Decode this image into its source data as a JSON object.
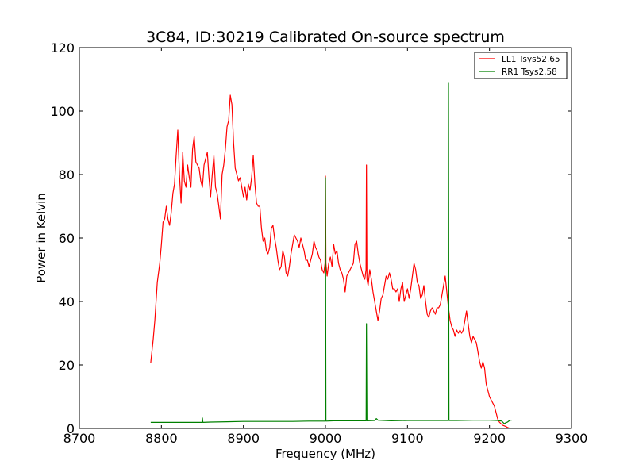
{
  "chart_data": {
    "type": "line",
    "title": "3C84, ID:30219 Calibrated On-source spectrum",
    "xlabel": "Frequency (MHz)",
    "ylabel": "Power in Kelvin",
    "xlim": [
      8700,
      9300
    ],
    "ylim": [
      0,
      120
    ],
    "xticks": [
      8700,
      8800,
      8900,
      9000,
      9100,
      9200,
      9300
    ],
    "yticks": [
      0,
      20,
      40,
      60,
      80,
      100,
      120
    ],
    "grid": false,
    "legend_position": "top-right",
    "series": [
      {
        "name": "LL1 Tsys52.65",
        "color": "#ff0000",
        "points": [
          [
            8787,
            20.7
          ],
          [
            8790,
            28
          ],
          [
            8792,
            34
          ],
          [
            8795,
            46
          ],
          [
            8798,
            52
          ],
          [
            8800,
            58
          ],
          [
            8802,
            65
          ],
          [
            8804,
            66
          ],
          [
            8806,
            70
          ],
          [
            8808,
            66
          ],
          [
            8810,
            64
          ],
          [
            8812,
            68
          ],
          [
            8814,
            74
          ],
          [
            8816,
            77
          ],
          [
            8818,
            86
          ],
          [
            8820,
            94
          ],
          [
            8822,
            80
          ],
          [
            8824,
            71
          ],
          [
            8826,
            87
          ],
          [
            8828,
            78
          ],
          [
            8830,
            76
          ],
          [
            8832,
            83
          ],
          [
            8834,
            79
          ],
          [
            8836,
            76
          ],
          [
            8838,
            88
          ],
          [
            8840,
            92
          ],
          [
            8842,
            84
          ],
          [
            8844,
            83
          ],
          [
            8846,
            82
          ],
          [
            8848,
            78
          ],
          [
            8850,
            76
          ],
          [
            8852,
            83
          ],
          [
            8854,
            85
          ],
          [
            8856,
            87
          ],
          [
            8858,
            79
          ],
          [
            8860,
            73
          ],
          [
            8862,
            80
          ],
          [
            8864,
            86
          ],
          [
            8866,
            76
          ],
          [
            8868,
            74
          ],
          [
            8870,
            70
          ],
          [
            8872,
            66
          ],
          [
            8874,
            80
          ],
          [
            8876,
            83
          ],
          [
            8878,
            88
          ],
          [
            8880,
            95
          ],
          [
            8882,
            97
          ],
          [
            8884,
            105
          ],
          [
            8886,
            102
          ],
          [
            8888,
            90
          ],
          [
            8890,
            82
          ],
          [
            8892,
            80
          ],
          [
            8894,
            78
          ],
          [
            8896,
            79
          ],
          [
            8898,
            76
          ],
          [
            8900,
            73
          ],
          [
            8902,
            76
          ],
          [
            8904,
            72
          ],
          [
            8906,
            77
          ],
          [
            8908,
            75
          ],
          [
            8910,
            79
          ],
          [
            8912,
            86
          ],
          [
            8914,
            77
          ],
          [
            8916,
            71
          ],
          [
            8918,
            70
          ],
          [
            8920,
            70
          ],
          [
            8922,
            63
          ],
          [
            8924,
            59
          ],
          [
            8926,
            60
          ],
          [
            8928,
            56
          ],
          [
            8930,
            55
          ],
          [
            8932,
            57
          ],
          [
            8934,
            63
          ],
          [
            8936,
            64
          ],
          [
            8938,
            60
          ],
          [
            8940,
            57
          ],
          [
            8942,
            53
          ],
          [
            8944,
            50
          ],
          [
            8946,
            51
          ],
          [
            8948,
            56
          ],
          [
            8950,
            54
          ],
          [
            8952,
            49
          ],
          [
            8954,
            48
          ],
          [
            8956,
            51
          ],
          [
            8958,
            55
          ],
          [
            8960,
            58
          ],
          [
            8962,
            61
          ],
          [
            8964,
            60
          ],
          [
            8966,
            59
          ],
          [
            8968,
            57
          ],
          [
            8970,
            60
          ],
          [
            8972,
            58
          ],
          [
            8974,
            56
          ],
          [
            8976,
            53
          ],
          [
            8978,
            53
          ],
          [
            8980,
            51
          ],
          [
            8982,
            53
          ],
          [
            8984,
            55
          ],
          [
            8986,
            59
          ],
          [
            8988,
            57
          ],
          [
            8990,
            56
          ],
          [
            8992,
            54
          ],
          [
            8994,
            53
          ],
          [
            8996,
            50
          ],
          [
            8998,
            49
          ],
          [
            8999.5,
            52
          ],
          [
            9000,
            79.5
          ],
          [
            9000.6,
            52
          ],
          [
            9002,
            48
          ],
          [
            9004,
            52
          ],
          [
            9006,
            54
          ],
          [
            9008,
            51
          ],
          [
            9010,
            58
          ],
          [
            9012,
            55
          ],
          [
            9014,
            56
          ],
          [
            9016,
            52
          ],
          [
            9018,
            50
          ],
          [
            9020,
            49
          ],
          [
            9022,
            47
          ],
          [
            9024,
            43
          ],
          [
            9026,
            48
          ],
          [
            9028,
            49
          ],
          [
            9030,
            50
          ],
          [
            9032,
            51
          ],
          [
            9034,
            52
          ],
          [
            9036,
            58
          ],
          [
            9038,
            59
          ],
          [
            9040,
            55
          ],
          [
            9042,
            52
          ],
          [
            9044,
            50
          ],
          [
            9046,
            48
          ],
          [
            9048,
            47
          ],
          [
            9049.5,
            50
          ],
          [
            9050,
            83
          ],
          [
            9050.6,
            47
          ],
          [
            9052,
            45
          ],
          [
            9054,
            50
          ],
          [
            9056,
            47
          ],
          [
            9058,
            43
          ],
          [
            9060,
            40
          ],
          [
            9062,
            37
          ],
          [
            9064,
            34
          ],
          [
            9066,
            37
          ],
          [
            9068,
            41
          ],
          [
            9070,
            42
          ],
          [
            9072,
            45
          ],
          [
            9074,
            48
          ],
          [
            9076,
            47
          ],
          [
            9078,
            49
          ],
          [
            9080,
            47
          ],
          [
            9082,
            44
          ],
          [
            9084,
            44
          ],
          [
            9086,
            43
          ],
          [
            9088,
            44
          ],
          [
            9090,
            40
          ],
          [
            9092,
            44
          ],
          [
            9094,
            46
          ],
          [
            9096,
            40
          ],
          [
            9098,
            42
          ],
          [
            9100,
            44
          ],
          [
            9102,
            41
          ],
          [
            9104,
            44
          ],
          [
            9106,
            48
          ],
          [
            9108,
            52
          ],
          [
            9110,
            50
          ],
          [
            9112,
            46
          ],
          [
            9114,
            45
          ],
          [
            9116,
            41
          ],
          [
            9118,
            42
          ],
          [
            9120,
            45
          ],
          [
            9122,
            40
          ],
          [
            9124,
            36
          ],
          [
            9126,
            35
          ],
          [
            9128,
            37
          ],
          [
            9130,
            38
          ],
          [
            9132,
            37
          ],
          [
            9134,
            36
          ],
          [
            9136,
            38
          ],
          [
            9138,
            38
          ],
          [
            9140,
            39
          ],
          [
            9142,
            42
          ],
          [
            9144,
            45
          ],
          [
            9146,
            48
          ],
          [
            9148,
            43
          ],
          [
            9150,
            38
          ],
          [
            9152,
            34
          ],
          [
            9154,
            32
          ],
          [
            9156,
            31
          ],
          [
            9158,
            29
          ],
          [
            9160,
            31
          ],
          [
            9162,
            30
          ],
          [
            9164,
            31
          ],
          [
            9166,
            30
          ],
          [
            9168,
            31
          ],
          [
            9170,
            34
          ],
          [
            9172,
            37
          ],
          [
            9174,
            33
          ],
          [
            9176,
            29
          ],
          [
            9178,
            27
          ],
          [
            9180,
            29
          ],
          [
            9182,
            28
          ],
          [
            9184,
            27
          ],
          [
            9186,
            24
          ],
          [
            9188,
            21
          ],
          [
            9190,
            19
          ],
          [
            9192,
            21
          ],
          [
            9194,
            19
          ],
          [
            9196,
            14
          ],
          [
            9198,
            12
          ],
          [
            9200,
            10
          ],
          [
            9202,
            9
          ],
          [
            9204,
            8
          ],
          [
            9206,
            7
          ],
          [
            9208,
            5
          ],
          [
            9210,
            3
          ],
          [
            9212,
            2
          ],
          [
            9214,
            1.5
          ],
          [
            9216,
            1
          ],
          [
            9218,
            0.8
          ],
          [
            9220,
            0.6
          ],
          [
            9222,
            0.3
          ],
          [
            9224,
            0.1
          ],
          [
            9225,
            0
          ]
        ]
      },
      {
        "name": "RR1 Tsys2.58",
        "color": "#008000",
        "points": [
          [
            8787,
            1.9
          ],
          [
            8800,
            1.9
          ],
          [
            8820,
            1.9
          ],
          [
            8840,
            1.9
          ],
          [
            8849.6,
            1.9
          ],
          [
            8850,
            3.3
          ],
          [
            8850.6,
            1.9
          ],
          [
            8860,
            2.0
          ],
          [
            8880,
            2.1
          ],
          [
            8900,
            2.2
          ],
          [
            8920,
            2.2
          ],
          [
            8940,
            2.2
          ],
          [
            8960,
            2.2
          ],
          [
            8980,
            2.3
          ],
          [
            8999.6,
            2.3
          ],
          [
            9000,
            79
          ],
          [
            9000.6,
            2.3
          ],
          [
            9010,
            2.4
          ],
          [
            9030,
            2.4
          ],
          [
            9049.6,
            2.4
          ],
          [
            9050,
            33
          ],
          [
            9050.6,
            2.4
          ],
          [
            9060,
            2.5
          ],
          [
            9062,
            3.1
          ],
          [
            9064,
            2.6
          ],
          [
            9080,
            2.4
          ],
          [
            9100,
            2.5
          ],
          [
            9120,
            2.5
          ],
          [
            9140,
            2.5
          ],
          [
            9149.6,
            2.5
          ],
          [
            9150,
            109
          ],
          [
            9150.6,
            2.5
          ],
          [
            9160,
            2.5
          ],
          [
            9180,
            2.6
          ],
          [
            9200,
            2.6
          ],
          [
            9210,
            2.5
          ],
          [
            9215,
            2.3
          ],
          [
            9218,
            1.5
          ],
          [
            9220,
            1.8
          ],
          [
            9222,
            2.0
          ],
          [
            9225,
            2.6
          ],
          [
            9227,
            2.6
          ]
        ]
      }
    ]
  }
}
